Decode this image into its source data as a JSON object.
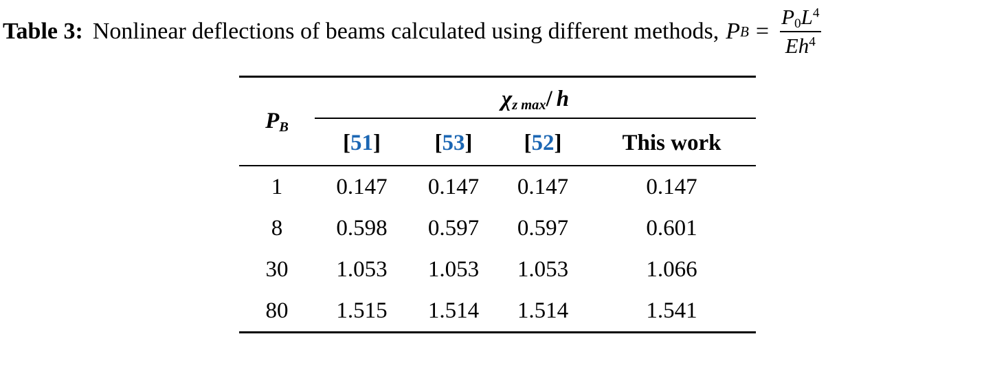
{
  "colors": {
    "cite": "#1b66b3",
    "text": "#000000",
    "rule": "#000000"
  },
  "title": {
    "label": "Table 3:",
    "text": "Nonlinear deflections of beams calculated using different methods,",
    "formula": {
      "var": "P",
      "var_sub": "B",
      "equals": "=",
      "num_var1": "P",
      "num_sub1": "0",
      "num_var2": "L",
      "num_sup2": "4",
      "den_var1": "E",
      "den_var2": "h",
      "den_sup": "4"
    }
  },
  "table": {
    "corner": {
      "var": "P",
      "sub": "B"
    },
    "span_header": {
      "chi": "χ",
      "sub": "z max",
      "slash": "/",
      "var": "h"
    },
    "headers": [
      {
        "pre": "[",
        "cite": "51",
        "post": "]"
      },
      {
        "pre": "[",
        "cite": "53",
        "post": "]"
      },
      {
        "pre": "[",
        "cite": "52",
        "post": "]"
      },
      {
        "label": "This work"
      }
    ],
    "rows": [
      {
        "pb": "1",
        "values": [
          "0.147",
          "0.147",
          "0.147",
          "0.147"
        ]
      },
      {
        "pb": "8",
        "values": [
          "0.598",
          "0.597",
          "0.597",
          "0.601"
        ]
      },
      {
        "pb": "30",
        "values": [
          "1.053",
          "1.053",
          "1.053",
          "1.066"
        ]
      },
      {
        "pb": "80",
        "values": [
          "1.515",
          "1.514",
          "1.514",
          "1.541"
        ]
      }
    ]
  }
}
